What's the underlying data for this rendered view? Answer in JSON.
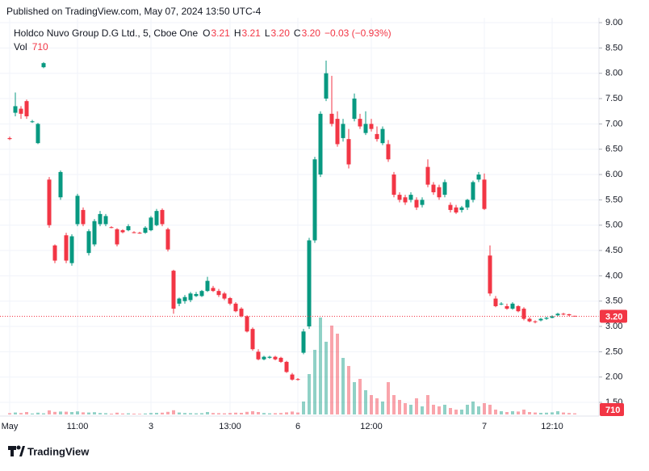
{
  "header": "Published on TradingView.com, May 07, 2024 13:50 UTC-4",
  "footer": "TradingView",
  "chart_data": {
    "type": "candlestick",
    "legend": {
      "symbol": "Holdco Nuvo Group D.G Ltd., 5, Cboe One",
      "items": [
        {
          "key": "O",
          "value": "3.21"
        },
        {
          "key": "H",
          "value": "3.21"
        },
        {
          "key": "L",
          "value": "3.20"
        },
        {
          "key": "C",
          "value": "3.20"
        }
      ],
      "change": "−0.03 (−0.93%)",
      "volume_key": "Vol"
    },
    "up_color": "#089981",
    "down_color": "#f23645",
    "last_price": {
      "value": 3.2,
      "label": "3.20"
    },
    "ylim": [
      1.4,
      9.05
    ],
    "yticks": [
      {
        "value": 1.5,
        "label": "1.50"
      },
      {
        "value": 2,
        "label": "2.00"
      },
      {
        "value": 2.5,
        "label": "2.50"
      },
      {
        "value": 3,
        "label": "3.00"
      },
      {
        "value": 3.5,
        "label": "3.50"
      },
      {
        "value": 4,
        "label": "4.00"
      },
      {
        "value": 4.5,
        "label": "4.50"
      },
      {
        "value": 5,
        "label": "5.00"
      },
      {
        "value": 5.5,
        "label": "5.50"
      },
      {
        "value": 6,
        "label": "6.00"
      },
      {
        "value": 6.5,
        "label": "6.50"
      },
      {
        "value": 7,
        "label": "7.00"
      },
      {
        "value": 7.5,
        "label": "7.50"
      },
      {
        "value": 8,
        "label": "8.00"
      },
      {
        "value": 8.5,
        "label": "8.50"
      },
      {
        "value": 9,
        "label": "9.00"
      }
    ],
    "grid": true,
    "categories": [
      "May",
      null,
      null,
      null,
      null,
      null,
      null,
      null,
      null,
      null,
      null,
      null,
      "11:00",
      null,
      null,
      null,
      null,
      null,
      null,
      null,
      null,
      null,
      null,
      null,
      null,
      "3",
      null,
      null,
      null,
      null,
      null,
      null,
      null,
      null,
      null,
      null,
      null,
      null,
      null,
      "13:00",
      null,
      null,
      null,
      null,
      null,
      null,
      null,
      null,
      null,
      null,
      null,
      "6",
      null,
      null,
      null,
      null,
      null,
      null,
      null,
      null,
      null,
      null,
      null,
      null,
      "12:00",
      null,
      null,
      null,
      null,
      null,
      null,
      null,
      null,
      null,
      null,
      null,
      null,
      null,
      null,
      null,
      null,
      null,
      null,
      null,
      "7",
      null,
      null,
      null,
      null,
      null,
      null,
      null,
      null,
      null,
      null,
      null,
      "12:10",
      null,
      null,
      null,
      null
    ],
    "ohlc": [
      [
        6.72,
        6.75,
        6.68,
        6.7
      ],
      [
        7.22,
        7.62,
        7.15,
        7.35
      ],
      [
        7.3,
        7.35,
        7.1,
        7.2
      ],
      [
        7.45,
        7.48,
        7.1,
        7.15
      ],
      [
        7.05,
        7.08,
        7.02,
        7.05
      ],
      [
        6.62,
        7.02,
        6.6,
        7.0
      ],
      [
        8.12,
        8.22,
        8.1,
        8.2
      ],
      [
        5.9,
        5.95,
        4.95,
        5.0
      ],
      [
        4.6,
        4.62,
        4.25,
        4.3
      ],
      [
        5.55,
        6.08,
        5.5,
        6.05
      ],
      [
        4.8,
        4.85,
        4.25,
        4.3
      ],
      [
        4.25,
        4.82,
        4.2,
        4.78
      ],
      [
        5.02,
        5.62,
        4.98,
        5.58
      ],
      [
        5.3,
        5.35,
        4.98,
        5.02
      ],
      [
        4.45,
        4.92,
        4.4,
        4.88
      ],
      [
        4.62,
        5.12,
        4.58,
        5.08
      ],
      [
        5.02,
        5.28,
        4.98,
        5.22
      ],
      [
        5.02,
        5.22,
        4.98,
        5.18
      ],
      [
        4.96,
        4.98,
        4.94,
        4.95
      ],
      [
        4.92,
        4.94,
        4.58,
        4.62
      ],
      [
        4.9,
        4.92,
        4.84,
        4.86
      ],
      [
        4.9,
        5.02,
        4.88,
        4.98
      ],
      [
        4.86,
        4.88,
        4.84,
        4.85
      ],
      [
        4.85,
        4.87,
        4.83,
        4.84
      ],
      [
        4.85,
        4.98,
        4.83,
        4.95
      ],
      [
        4.9,
        5.18,
        4.88,
        5.15
      ],
      [
        5.0,
        5.32,
        4.98,
        5.28
      ],
      [
        5.3,
        5.33,
        4.98,
        5.02
      ],
      [
        4.92,
        4.95,
        4.48,
        4.52
      ],
      [
        4.1,
        4.12,
        3.25,
        3.35
      ],
      [
        3.45,
        3.57,
        3.4,
        3.55
      ],
      [
        3.5,
        3.62,
        3.45,
        3.58
      ],
      [
        3.52,
        3.68,
        3.48,
        3.65
      ],
      [
        3.6,
        3.68,
        3.58,
        3.64
      ],
      [
        3.6,
        3.72,
        3.58,
        3.7
      ],
      [
        3.7,
        3.98,
        3.68,
        3.9
      ],
      [
        3.76,
        3.8,
        3.68,
        3.7
      ],
      [
        3.7,
        3.74,
        3.58,
        3.62
      ],
      [
        3.65,
        3.68,
        3.52,
        3.55
      ],
      [
        3.56,
        3.58,
        3.42,
        3.45
      ],
      [
        3.45,
        3.48,
        3.28,
        3.3
      ],
      [
        3.35,
        3.38,
        3.18,
        3.2
      ],
      [
        3.2,
        3.22,
        2.88,
        2.9
      ],
      [
        2.95,
        2.98,
        2.52,
        2.55
      ],
      [
        2.5,
        2.55,
        2.33,
        2.35
      ],
      [
        2.35,
        2.42,
        2.33,
        2.4
      ],
      [
        2.38,
        2.42,
        2.36,
        2.4
      ],
      [
        2.4,
        2.42,
        2.33,
        2.35
      ],
      [
        2.38,
        2.4,
        2.28,
        2.3
      ],
      [
        2.3,
        2.32,
        2.08,
        2.1
      ],
      [
        2.05,
        2.08,
        1.93,
        1.95
      ],
      [
        1.96,
        1.98,
        1.93,
        1.95
      ],
      [
        2.48,
        2.95,
        2.45,
        2.9
      ],
      [
        3.0,
        4.75,
        2.95,
        4.7
      ],
      [
        4.7,
        6.35,
        4.65,
        6.3
      ],
      [
        6.0,
        7.25,
        5.95,
        7.2
      ],
      [
        7.5,
        8.25,
        7.45,
        8.0
      ],
      [
        7.2,
        7.95,
        6.95,
        7.0
      ],
      [
        7.1,
        7.25,
        6.55,
        6.6
      ],
      [
        6.72,
        7.1,
        6.65,
        7.0
      ],
      [
        6.7,
        6.9,
        6.12,
        6.2
      ],
      [
        7.1,
        7.6,
        7.05,
        7.5
      ],
      [
        7.1,
        7.2,
        6.9,
        6.95
      ],
      [
        6.82,
        7.25,
        6.78,
        7.0
      ],
      [
        7.0,
        7.1,
        6.85,
        6.9
      ],
      [
        6.8,
        6.95,
        6.65,
        6.7
      ],
      [
        6.62,
        6.95,
        6.58,
        6.9
      ],
      [
        6.6,
        6.68,
        6.25,
        6.3
      ],
      [
        6.0,
        6.05,
        5.55,
        5.6
      ],
      [
        5.6,
        5.65,
        5.45,
        5.5
      ],
      [
        5.55,
        5.6,
        5.4,
        5.45
      ],
      [
        5.5,
        5.65,
        5.45,
        5.6
      ],
      [
        5.5,
        5.55,
        5.3,
        5.35
      ],
      [
        5.4,
        5.55,
        5.35,
        5.5
      ],
      [
        6.15,
        6.3,
        5.75,
        5.8
      ],
      [
        5.8,
        5.85,
        5.6,
        5.65
      ],
      [
        5.75,
        5.8,
        5.5,
        5.55
      ],
      [
        5.6,
        5.9,
        5.55,
        5.85
      ],
      [
        5.4,
        5.45,
        5.25,
        5.3
      ],
      [
        5.35,
        5.4,
        5.22,
        5.25
      ],
      [
        5.3,
        5.38,
        5.25,
        5.35
      ],
      [
        5.35,
        5.52,
        5.3,
        5.5
      ],
      [
        5.5,
        5.88,
        5.45,
        5.85
      ],
      [
        5.9,
        6.05,
        5.85,
        6.0
      ],
      [
        5.9,
        6.02,
        5.3,
        5.32
      ],
      [
        4.4,
        4.6,
        3.6,
        3.65
      ],
      [
        3.55,
        3.6,
        3.38,
        3.4
      ],
      [
        3.45,
        3.48,
        3.42,
        3.45
      ],
      [
        3.4,
        3.45,
        3.33,
        3.35
      ],
      [
        3.35,
        3.48,
        3.33,
        3.45
      ],
      [
        3.4,
        3.42,
        3.28,
        3.3
      ],
      [
        3.35,
        3.38,
        3.12,
        3.15
      ],
      [
        3.15,
        3.18,
        3.08,
        3.1
      ],
      [
        3.1,
        3.12,
        3.06,
        3.09
      ],
      [
        3.12,
        3.17,
        3.1,
        3.15
      ],
      [
        3.15,
        3.19,
        3.13,
        3.17
      ],
      [
        3.17,
        3.22,
        3.16,
        3.2
      ],
      [
        3.22,
        3.27,
        3.2,
        3.25
      ],
      [
        3.25,
        3.27,
        3.22,
        3.24
      ],
      [
        3.24,
        3.25,
        3.2,
        3.22
      ],
      [
        3.21,
        3.21,
        3.2,
        3.2
      ]
    ],
    "volume": [
      800,
      1200,
      900,
      1500,
      600,
      1100,
      700,
      2500,
      1600,
      1800,
      1700,
      1500,
      1900,
      1300,
      1200,
      1400,
      900,
      800,
      500,
      1100,
      600,
      700,
      500,
      400,
      600,
      900,
      1000,
      1100,
      1600,
      2600,
      1200,
      900,
      800,
      700,
      800,
      1500,
      900,
      800,
      700,
      900,
      1100,
      1000,
      1600,
      2000,
      1500,
      900,
      700,
      800,
      900,
      1300,
      1800,
      1200,
      8000,
      25000,
      40000,
      60000,
      45000,
      55000,
      50000,
      35000,
      30000,
      20000,
      22000,
      15000,
      12000,
      10000,
      8000,
      20000,
      12000,
      9000,
      7000,
      6000,
      10000,
      5000,
      12000,
      6000,
      5000,
      6000,
      4000,
      3000,
      3000,
      6000,
      8000,
      5000,
      7000,
      6000,
      3000,
      2000,
      1500,
      2000,
      1800,
      3000,
      1500,
      1200,
      1000,
      1100,
      1300,
      2000,
      1200,
      900,
      710
    ]
  }
}
